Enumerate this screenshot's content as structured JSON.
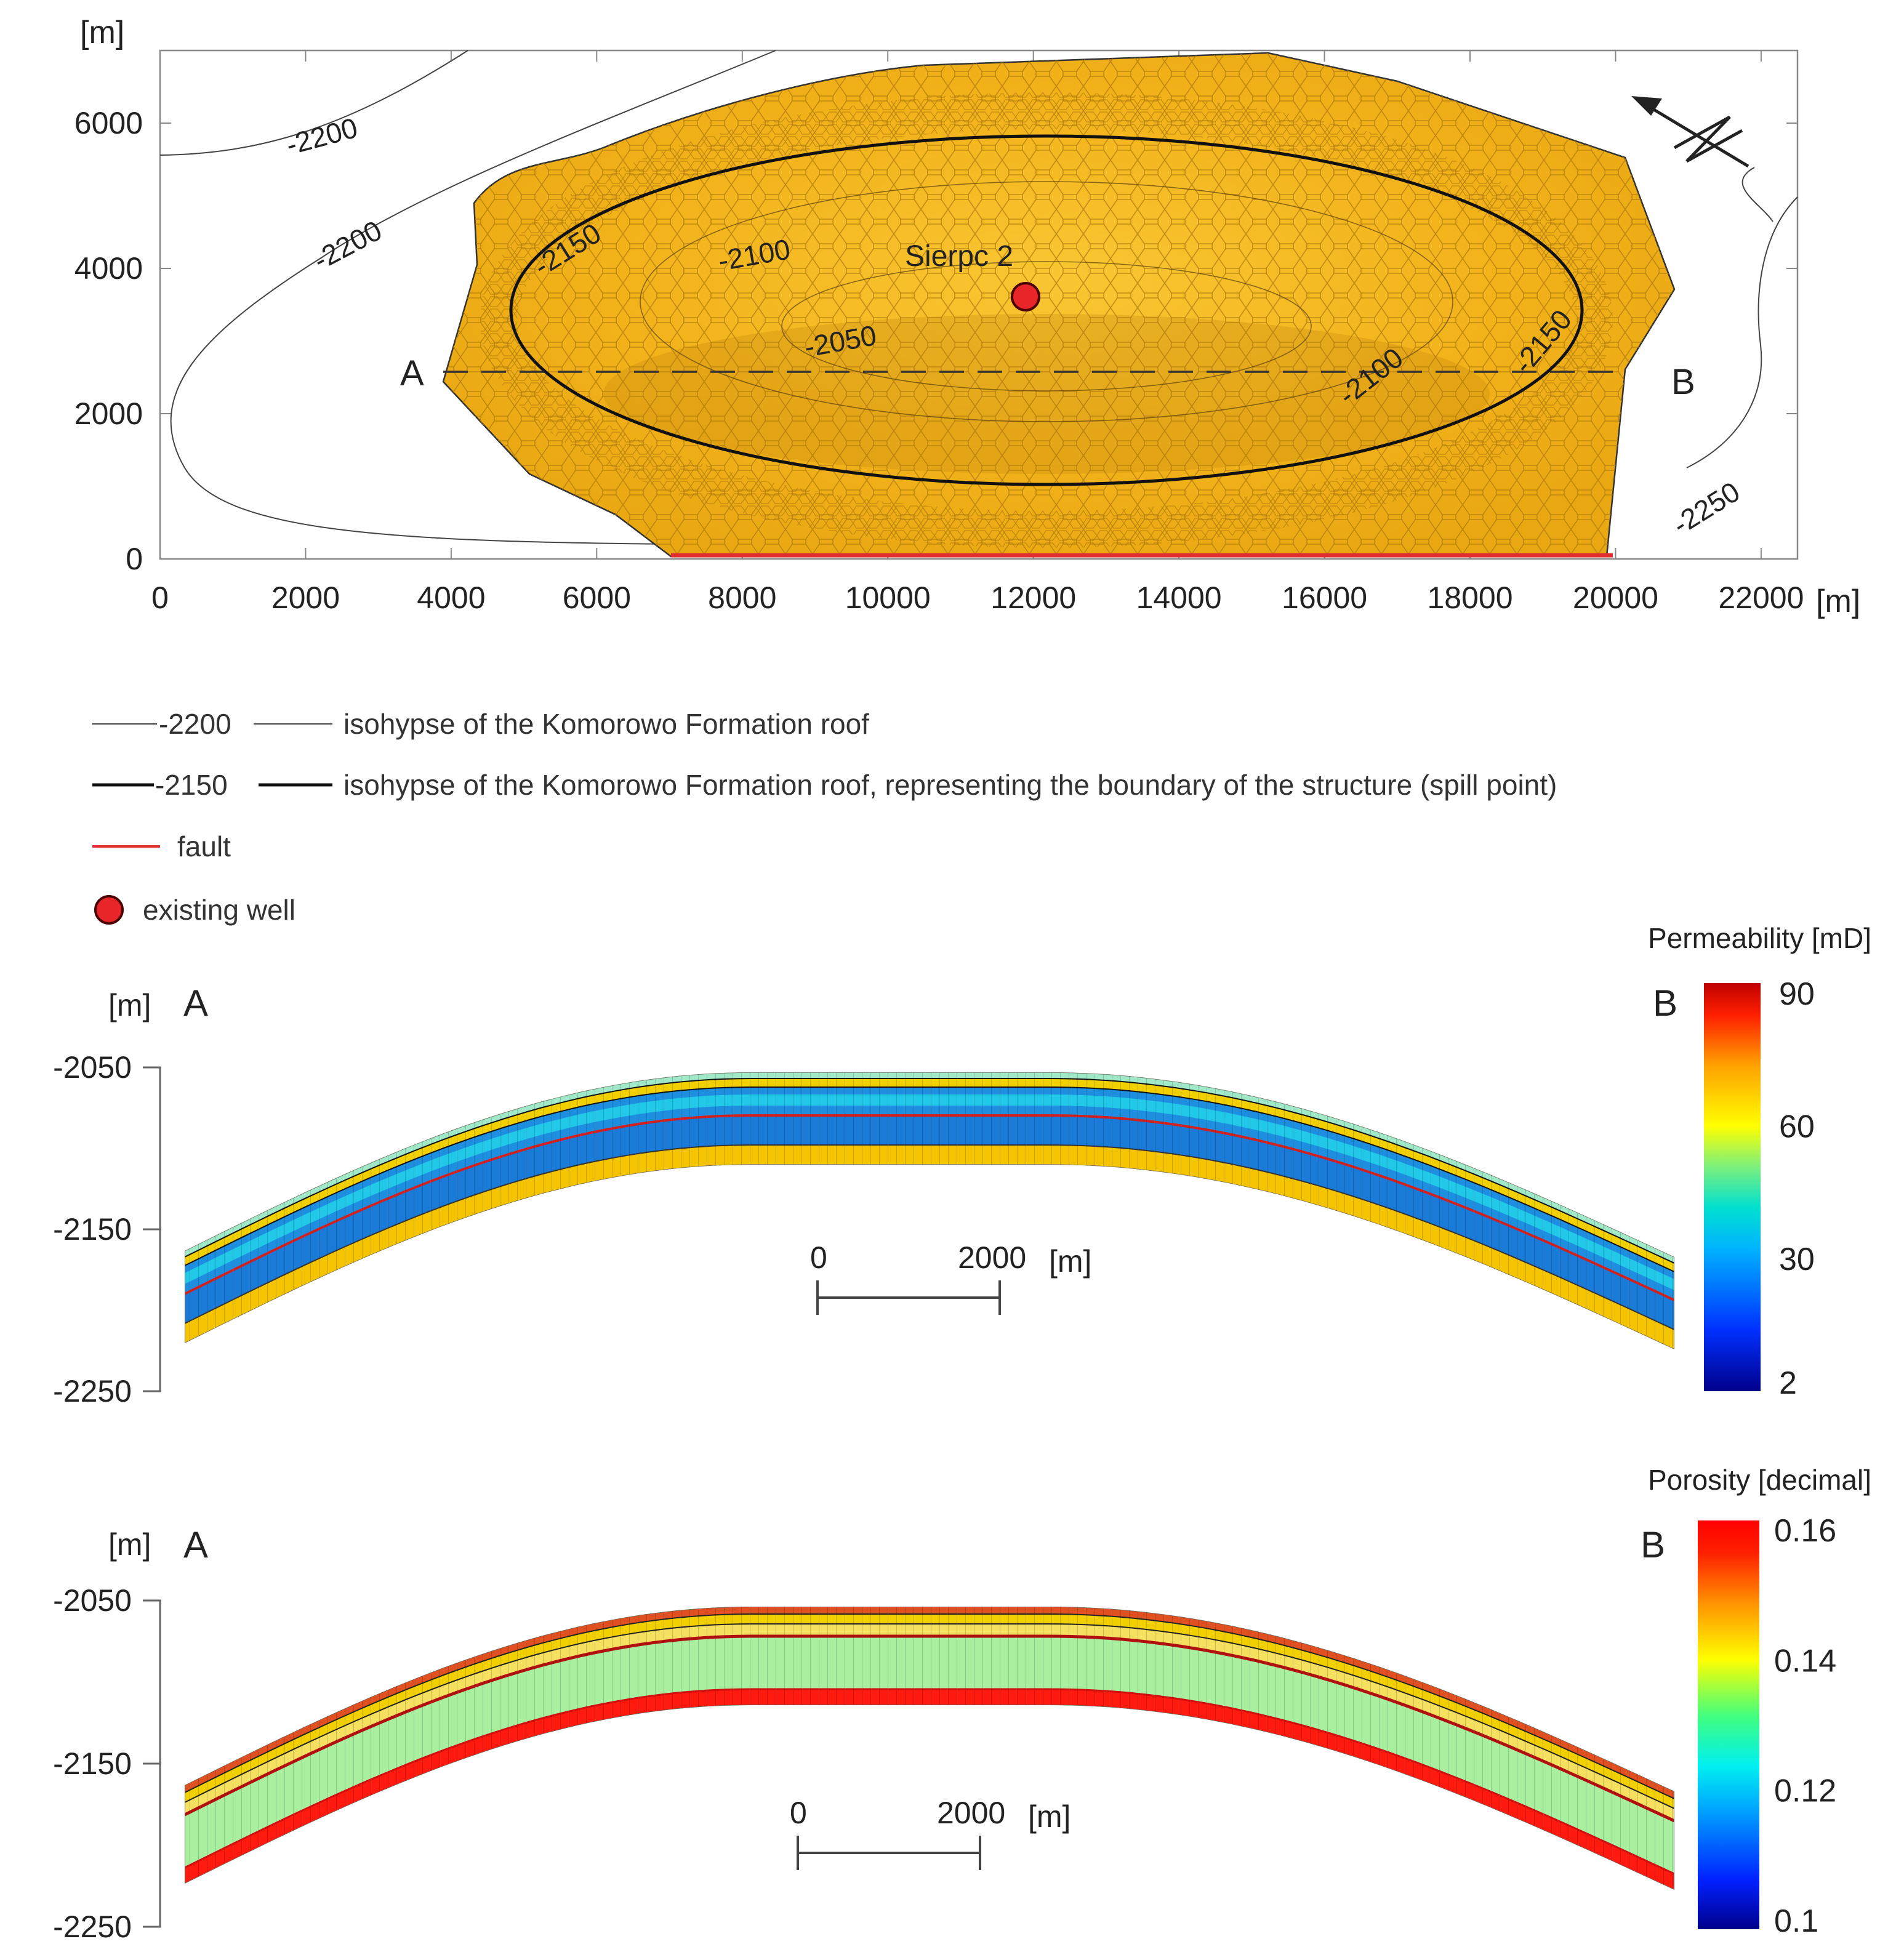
{
  "map": {
    "y_unit": "[m]",
    "x_unit": "[m]",
    "y_ticks": [
      "6000",
      "4000",
      "2000",
      "0"
    ],
    "x_ticks": [
      "0",
      "2000",
      "4000",
      "6000",
      "8000",
      "10000",
      "12000",
      "14000",
      "16000",
      "18000",
      "20000",
      "22000"
    ],
    "x_range": [
      0,
      22500
    ],
    "y_range": [
      0,
      7000
    ],
    "section_start": "A",
    "section_end": "B",
    "well_name": "Sierpc 2",
    "contour_labels": [
      "-2200",
      "-2200",
      "-2150",
      "-2100",
      "-2050",
      "-2100",
      "-2150",
      "-2250"
    ],
    "colors": {
      "structure": "#f5b81c",
      "mesh": "#b07a0e",
      "fault": "#e03030",
      "well": "#e8262a"
    }
  },
  "legend": {
    "items": [
      {
        "sample": "-2200",
        "text": "isohypse of the Komorowo Formation roof"
      },
      {
        "sample": "-2150",
        "text": "isohypse of the Komorowo Formation roof, representing the boundary of the structure (spill point)"
      },
      {
        "sample": "",
        "text": "fault"
      },
      {
        "sample": "",
        "text": "existing well"
      }
    ]
  },
  "sections": [
    {
      "id": "permeability",
      "title": "Permeability [mD]",
      "y_unit": "[m]",
      "start": "A",
      "end": "B",
      "y_ticks": [
        "-2050",
        "-2150",
        "-2250"
      ],
      "depth_range": [
        -2250,
        -2050
      ],
      "scale_zero": "0",
      "scale_len": "2000",
      "scale_unit": "[m]",
      "colorbar_ticks": [
        "90",
        "60",
        "30",
        "2"
      ],
      "colorbar_range": [
        2,
        90
      ],
      "colors": {
        "low": "#00008b",
        "high": "#d00000"
      }
    },
    {
      "id": "porosity",
      "title": "Porosity [decimal]",
      "y_unit": "[m]",
      "start": "A",
      "end": "B",
      "y_ticks": [
        "-2050",
        "-2150",
        "-2250"
      ],
      "depth_range": [
        -2250,
        -2050
      ],
      "scale_zero": "0",
      "scale_len": "2000",
      "scale_unit": "[m]",
      "colorbar_ticks": [
        "0.16",
        "0.14",
        "0.12",
        "0.1"
      ],
      "colorbar_range": [
        0.1,
        0.16
      ],
      "colors": {
        "low": "#00008b",
        "high": "#ff0000"
      }
    }
  ]
}
